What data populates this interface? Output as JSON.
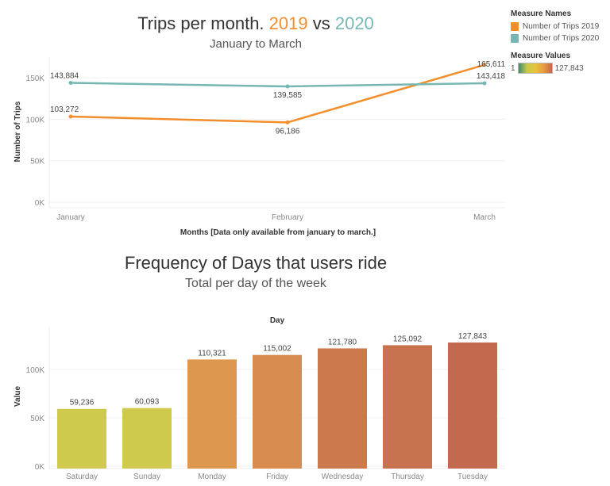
{
  "chart_data": [
    {
      "type": "line",
      "title_parts": [
        "Trips per month. ",
        "2019",
        " vs ",
        "2020"
      ],
      "subtitle": "January to March",
      "xlabel": "Months [Data only available from january to march.]",
      "ylabel": "Number of Trips",
      "categories": [
        "January",
        "February",
        "March"
      ],
      "yticks": [
        "0K",
        "50K",
        "100K",
        "150K"
      ],
      "ylim": [
        0,
        170000
      ],
      "grid": true,
      "legend_position": "right",
      "series": [
        {
          "name": "Number of Trips 2019",
          "color": "#f28e2b",
          "values": [
            103272,
            96186,
            165611
          ],
          "labels": [
            "103,272",
            "96,186",
            "165,611"
          ]
        },
        {
          "name": "Number of Trips 2020",
          "color": "#76b7b2",
          "values": [
            143884,
            139585,
            143418
          ],
          "labels": [
            "143,884",
            "139,585",
            "143,418"
          ]
        }
      ]
    },
    {
      "type": "bar",
      "title": "Frequency of Days that users ride",
      "subtitle": "Total per day of the week",
      "xlabel_top": "Day",
      "ylabel": "Value",
      "categories": [
        "Saturday",
        "Sunday",
        "Monday",
        "Friday",
        "Wednesday",
        "Thursday",
        "Tuesday"
      ],
      "values": [
        59236,
        60093,
        110321,
        115002,
        121780,
        125092,
        127843
      ],
      "labels": [
        "59,236",
        "60,093",
        "110,321",
        "115,002",
        "121,780",
        "125,092",
        "127,843"
      ],
      "colors": [
        "#cfc94e",
        "#cfc94e",
        "#dd974f",
        "#d88b4e",
        "#cc7a4d",
        "#c9724f",
        "#c36a4e"
      ],
      "yticks": [
        "0K",
        "50K",
        "100K"
      ],
      "ylim": [
        0,
        140000
      ],
      "grid": true
    }
  ],
  "legend": {
    "names_title": "Measure Names",
    "items": [
      {
        "label": "Number of Trips 2019",
        "color": "#f28e2b"
      },
      {
        "label": "Number of Trips 2020",
        "color": "#76b7b2"
      }
    ],
    "values_title": "Measure Values",
    "values_min": "1",
    "values_max": "127,843"
  }
}
